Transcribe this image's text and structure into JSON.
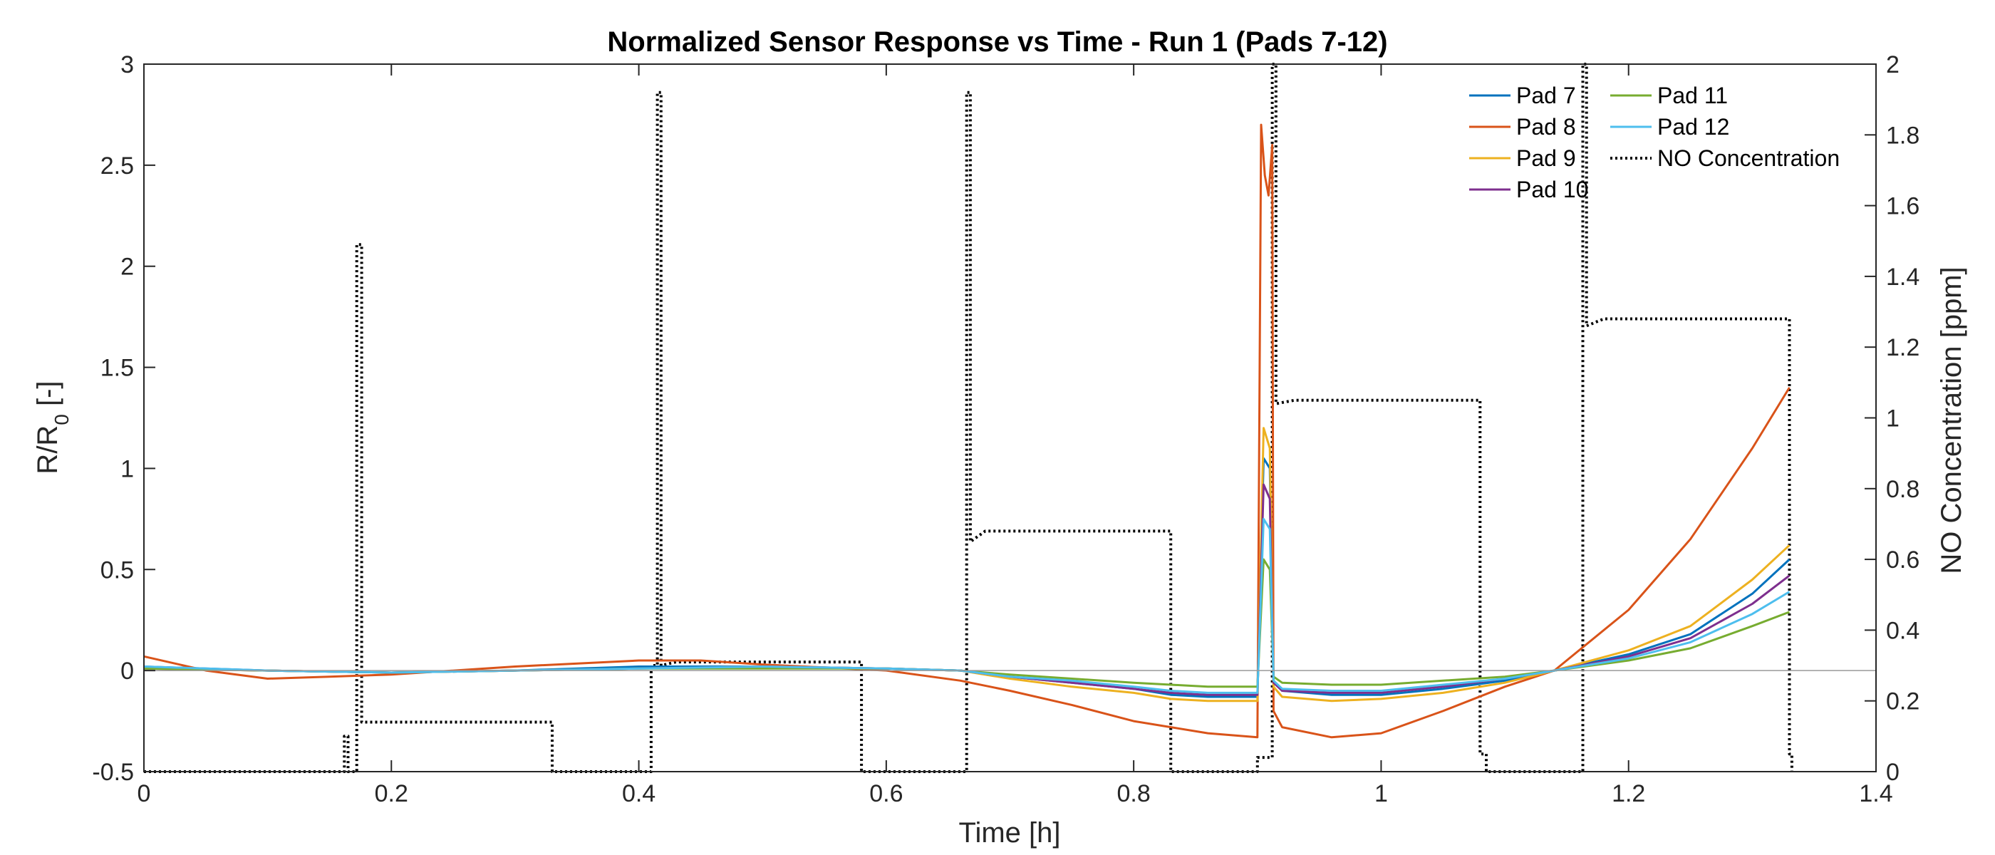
{
  "chart_data": {
    "type": "line",
    "title": "Normalized Sensor Response vs Time - Run 1 (Pads 7-12)",
    "xlabel": "Time [h]",
    "ylabel_left": "R/R",
    "ylabel_left_sub": "0",
    "ylabel_left_suffix": " [-]",
    "ylabel_right": "NO Concentration [ppm]",
    "xlim": [
      0,
      1.4
    ],
    "ylim_left": [
      -0.5,
      3
    ],
    "ylim_right": [
      0,
      2
    ],
    "xticks": [
      0,
      0.2,
      0.4,
      0.6,
      0.8,
      1,
      1.2,
      1.4
    ],
    "xtick_labels": [
      "0",
      "0.2",
      "0.4",
      "0.6",
      "0.8",
      "1",
      "1.2",
      "1.4"
    ],
    "yticks_left": [
      -0.5,
      0,
      0.5,
      1,
      1.5,
      2,
      2.5,
      3
    ],
    "ytick_labels_left": [
      "-0.5",
      "0",
      "0.5",
      "1",
      "1.5",
      "2",
      "2.5",
      "3"
    ],
    "yticks_right": [
      0,
      0.2,
      0.4,
      0.6,
      0.8,
      1,
      1.2,
      1.4,
      1.6,
      1.8,
      2
    ],
    "ytick_labels_right": [
      "0",
      "0.2",
      "0.4",
      "0.6",
      "0.8",
      "1",
      "1.2",
      "1.4",
      "1.6",
      "1.8",
      "2"
    ],
    "grid": false,
    "zero_line": true,
    "legend_position": "top-right",
    "series": [
      {
        "name": "Pad 7",
        "axis": "left",
        "color": "#0072BD",
        "dash": "solid",
        "x": [
          0,
          0.1,
          0.2,
          0.3,
          0.4,
          0.5,
          0.6,
          0.66,
          0.7,
          0.75,
          0.8,
          0.83,
          0.86,
          0.9,
          0.905,
          0.91,
          0.913,
          0.92,
          0.96,
          1.0,
          1.05,
          1.1,
          1.14,
          1.2,
          1.25,
          1.3,
          1.33
        ],
        "y": [
          0.02,
          0.0,
          -0.01,
          0.0,
          0.02,
          0.02,
          0.01,
          0.0,
          -0.03,
          -0.06,
          -0.09,
          -0.12,
          -0.13,
          -0.13,
          1.05,
          1.0,
          -0.05,
          -0.1,
          -0.12,
          -0.12,
          -0.09,
          -0.05,
          0.0,
          0.08,
          0.18,
          0.38,
          0.55
        ]
      },
      {
        "name": "Pad 8",
        "axis": "left",
        "color": "#D95319",
        "dash": "solid",
        "x": [
          0,
          0.05,
          0.1,
          0.15,
          0.2,
          0.3,
          0.4,
          0.45,
          0.5,
          0.6,
          0.66,
          0.7,
          0.75,
          0.8,
          0.83,
          0.86,
          0.9,
          0.903,
          0.906,
          0.909,
          0.912,
          0.913,
          0.92,
          0.96,
          1.0,
          1.05,
          1.1,
          1.14,
          1.2,
          1.25,
          1.3,
          1.33
        ],
        "y": [
          0.07,
          0.0,
          -0.04,
          -0.03,
          -0.02,
          0.02,
          0.05,
          0.05,
          0.03,
          0.0,
          -0.05,
          -0.1,
          -0.17,
          -0.25,
          -0.28,
          -0.31,
          -0.33,
          2.7,
          2.45,
          2.35,
          2.6,
          -0.2,
          -0.28,
          -0.33,
          -0.31,
          -0.2,
          -0.08,
          0.0,
          0.3,
          0.65,
          1.1,
          1.4
        ]
      },
      {
        "name": "Pad 9",
        "axis": "left",
        "color": "#EDB120",
        "dash": "solid",
        "x": [
          0,
          0.1,
          0.2,
          0.3,
          0.4,
          0.5,
          0.6,
          0.66,
          0.7,
          0.75,
          0.8,
          0.83,
          0.86,
          0.9,
          0.905,
          0.91,
          0.913,
          0.92,
          0.96,
          1.0,
          1.05,
          1.1,
          1.14,
          1.2,
          1.25,
          1.3,
          1.33
        ],
        "y": [
          0.01,
          0.0,
          -0.01,
          0.0,
          0.01,
          0.02,
          0.01,
          0.0,
          -0.04,
          -0.08,
          -0.11,
          -0.14,
          -0.15,
          -0.15,
          1.2,
          1.1,
          -0.08,
          -0.13,
          -0.15,
          -0.14,
          -0.11,
          -0.06,
          0.0,
          0.1,
          0.22,
          0.45,
          0.62
        ]
      },
      {
        "name": "Pad 10",
        "axis": "left",
        "color": "#7E2F8E",
        "dash": "solid",
        "x": [
          0,
          0.1,
          0.2,
          0.3,
          0.4,
          0.5,
          0.6,
          0.66,
          0.7,
          0.75,
          0.8,
          0.83,
          0.86,
          0.9,
          0.905,
          0.91,
          0.913,
          0.92,
          0.96,
          1.0,
          1.05,
          1.1,
          1.14,
          1.2,
          1.25,
          1.3,
          1.33
        ],
        "y": [
          0.01,
          0.0,
          -0.01,
          0.0,
          0.01,
          0.02,
          0.01,
          0.0,
          -0.03,
          -0.06,
          -0.09,
          -0.11,
          -0.12,
          -0.12,
          0.92,
          0.85,
          -0.06,
          -0.1,
          -0.11,
          -0.11,
          -0.08,
          -0.04,
          0.0,
          0.07,
          0.16,
          0.33,
          0.47
        ]
      },
      {
        "name": "Pad 11",
        "axis": "left",
        "color": "#77AC30",
        "dash": "solid",
        "x": [
          0,
          0.1,
          0.2,
          0.3,
          0.4,
          0.5,
          0.6,
          0.66,
          0.7,
          0.75,
          0.8,
          0.83,
          0.86,
          0.9,
          0.905,
          0.91,
          0.913,
          0.92,
          0.96,
          1.0,
          1.05,
          1.1,
          1.14,
          1.2,
          1.25,
          1.3,
          1.33
        ],
        "y": [
          0.01,
          0.0,
          -0.01,
          0.0,
          0.01,
          0.01,
          0.01,
          0.0,
          -0.02,
          -0.04,
          -0.06,
          -0.07,
          -0.08,
          -0.08,
          0.55,
          0.5,
          -0.03,
          -0.06,
          -0.07,
          -0.07,
          -0.05,
          -0.03,
          0.0,
          0.05,
          0.11,
          0.22,
          0.29
        ]
      },
      {
        "name": "Pad 12",
        "axis": "left",
        "color": "#4DBEEE",
        "dash": "solid",
        "x": [
          0,
          0.1,
          0.2,
          0.3,
          0.4,
          0.5,
          0.6,
          0.66,
          0.7,
          0.75,
          0.8,
          0.83,
          0.86,
          0.9,
          0.905,
          0.91,
          0.913,
          0.92,
          0.96,
          1.0,
          1.05,
          1.1,
          1.14,
          1.2,
          1.25,
          1.3,
          1.33
        ],
        "y": [
          0.02,
          0.0,
          -0.01,
          0.0,
          0.01,
          0.02,
          0.01,
          0.0,
          -0.03,
          -0.05,
          -0.08,
          -0.1,
          -0.11,
          -0.11,
          0.75,
          0.7,
          -0.05,
          -0.09,
          -0.1,
          -0.1,
          -0.07,
          -0.04,
          0.0,
          0.06,
          0.14,
          0.28,
          0.39
        ]
      },
      {
        "name": "NO Concentration",
        "axis": "right",
        "color": "#000000",
        "dash": "dotted",
        "x": [
          0,
          0.162,
          0.162,
          0.165,
          0.165,
          0.172,
          0.172,
          0.176,
          0.176,
          0.33,
          0.33,
          0.41,
          0.41,
          0.415,
          0.415,
          0.418,
          0.418,
          0.43,
          0.58,
          0.58,
          0.665,
          0.665,
          0.668,
          0.668,
          0.68,
          0.83,
          0.83,
          0.9,
          0.9,
          0.912,
          0.912,
          0.915,
          0.915,
          0.93,
          1.08,
          1.08,
          1.085,
          1.085,
          1.163,
          1.163,
          1.166,
          1.166,
          1.18,
          1.33,
          1.33,
          1.332,
          1.332
        ],
        "y": [
          0,
          0,
          0.1,
          0.1,
          0,
          0,
          1.49,
          1.49,
          0.14,
          0.14,
          0,
          0,
          0.3,
          0.3,
          1.92,
          1.92,
          0.3,
          0.31,
          0.31,
          0,
          0,
          1.92,
          1.92,
          0.65,
          0.68,
          0.68,
          0,
          0,
          0.04,
          0.04,
          2.0,
          2.0,
          1.04,
          1.05,
          1.05,
          0.05,
          0.05,
          0,
          0,
          2.0,
          2.0,
          1.26,
          1.28,
          1.28,
          0.05,
          0.05,
          0
        ]
      }
    ]
  }
}
